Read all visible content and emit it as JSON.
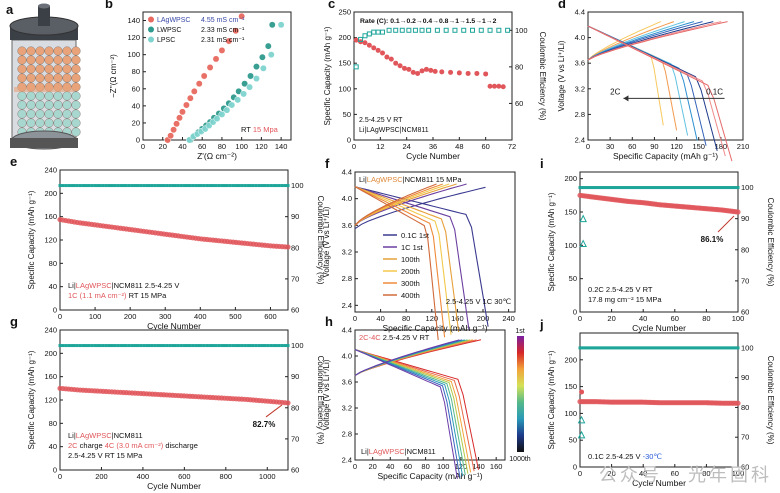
{
  "watermark": "公众号 · 光年固科",
  "chart_data": [
    {
      "id": "a",
      "type": "illustration",
      "panel_label": "a",
      "colors": {
        "cap": "#3b3f46",
        "particle_orange": "#e8a37a",
        "particle_teal": "#a7d7cf"
      }
    },
    {
      "id": "b",
      "type": "scatter",
      "panel_label": "b",
      "xlabel": "Z'(Ω cm⁻²)",
      "ylabel": "−Z''(Ω cm⁻²)",
      "xlim": [
        0,
        150
      ],
      "ylim": [
        0,
        150
      ],
      "xticks": [
        "0",
        "20",
        "40",
        "60",
        "80",
        "100",
        "120",
        "140"
      ],
      "yticks": [
        "0",
        "20",
        "40",
        "60",
        "80",
        "100",
        "120",
        "140"
      ],
      "legend": [
        {
          "name": "LAgWPSC",
          "value": "4.55 mS cm⁻¹",
          "color": "#e8695f",
          "text_color": "#3a49a8"
        },
        {
          "name": "LWPSC",
          "value": "2.33 mS cm⁻¹",
          "color": "#2f9a8e",
          "text_color": "#111111"
        },
        {
          "name": "LPSC",
          "value": "2.31 mS cm⁻¹",
          "color": "#7fd4cf",
          "text_color": "#111111"
        }
      ],
      "annotation": [
        {
          "text": "RT",
          "color": "#111111"
        },
        {
          "text": " 15 Mpa",
          "color": "#e0565a"
        }
      ],
      "series": [
        {
          "name": "LAgWPSC",
          "color": "#e8695f",
          "x": [
            25,
            28,
            31,
            34,
            37,
            40,
            44,
            48,
            52,
            57,
            62,
            68,
            74,
            80,
            87,
            94,
            100
          ],
          "y": [
            0,
            5,
            12,
            19,
            26,
            33,
            41,
            49,
            57,
            66,
            75,
            85,
            95,
            105,
            116,
            128,
            145
          ]
        },
        {
          "name": "LWPSC",
          "color": "#2f9a8e",
          "x": [
            48,
            52,
            56,
            60,
            64,
            68,
            72,
            77,
            82,
            87,
            92,
            97,
            103,
            109,
            115,
            121,
            127,
            131
          ],
          "y": [
            0,
            5,
            9,
            13,
            17,
            21,
            26,
            31,
            37,
            43,
            50,
            57,
            66,
            75,
            86,
            97,
            110,
            135
          ]
        },
        {
          "name": "LPSC",
          "color": "#7fd4cf",
          "x": [
            47,
            51,
            55,
            59,
            63,
            67,
            71,
            75,
            80,
            85,
            90,
            96,
            102,
            108,
            115,
            122,
            130,
            140
          ],
          "y": [
            0,
            4,
            7,
            10,
            13,
            17,
            21,
            25,
            30,
            35,
            41,
            47,
            54,
            62,
            72,
            84,
            100,
            135
          ]
        }
      ]
    },
    {
      "id": "c",
      "type": "scatter",
      "panel_label": "c",
      "title": "Rate (C): 0.1→0.2→0.4→0.8→1→1.5→1→2",
      "xlabel": "Cycle Number",
      "ylabel": "Specific Capacity (mAh g⁻¹)",
      "y2label": "Coulombic Efficiency (%)",
      "xlim": [
        0,
        72
      ],
      "ylim": [
        0,
        250
      ],
      "y2lim": [
        40,
        110
      ],
      "xticks": [
        "0",
        "12",
        "24",
        "36",
        "48",
        "60",
        "72"
      ],
      "yticks": [
        "0",
        "50",
        "100",
        "150",
        "200",
        "250"
      ],
      "y2ticks": [
        "60",
        "80",
        "100"
      ],
      "annotation": [
        "2.5-4.25 V RT",
        "Li|LAgWPSC|NCM811"
      ],
      "series": [
        {
          "name": "capacity",
          "color": "#e0565a",
          "x": [
            1,
            3,
            5,
            7,
            9,
            11,
            13,
            15,
            17,
            19,
            21,
            23,
            25,
            27,
            29,
            31,
            33,
            35,
            37,
            40,
            44,
            48,
            52,
            56,
            60,
            62,
            64,
            66,
            68
          ],
          "y": [
            195,
            192,
            190,
            185,
            180,
            175,
            170,
            162,
            158,
            150,
            145,
            140,
            138,
            132,
            130,
            135,
            138,
            136,
            134,
            133,
            132,
            131,
            130,
            130,
            129,
            105,
            105,
            105,
            104
          ]
        },
        {
          "name": "CE",
          "color": "#1ea59a",
          "x": [
            1,
            3,
            5,
            7,
            9,
            11,
            13,
            16,
            19,
            22,
            25,
            28,
            31,
            34,
            38,
            42,
            46,
            50,
            54,
            58,
            62,
            66,
            70
          ],
          "y": [
            80,
            95,
            97,
            98,
            99,
            99,
            99,
            100,
            100,
            100,
            100,
            100,
            100,
            100,
            100,
            100,
            100,
            100,
            100,
            100,
            100,
            100,
            100
          ]
        }
      ]
    },
    {
      "id": "d",
      "type": "line",
      "panel_label": "d",
      "xlabel": "Specific Capacity (mAh g⁻¹)",
      "ylabel": "Voltage (V vs Li⁺/Li)",
      "xlim": [
        0,
        210
      ],
      "ylim": [
        2.4,
        4.4
      ],
      "xticks": [
        "0",
        "30",
        "60",
        "90",
        "120",
        "150",
        "180",
        "210"
      ],
      "yticks": [
        "2.4",
        "2.8",
        "3.2",
        "3.6",
        "4.0",
        "4.4"
      ],
      "arrow": {
        "from": "0.1C",
        "to": "2C"
      },
      "discharge_caps": [
        102,
        120,
        135,
        148,
        160,
        175,
        186,
        195
      ],
      "colors": [
        "#f7c95e",
        "#f39b4f",
        "#60c2e0",
        "#2c8fd0",
        "#3462b8",
        "#1e3a8a",
        "#f08a8a",
        "#e76a6a"
      ]
    },
    {
      "id": "e",
      "type": "scatter",
      "panel_label": "e",
      "xlabel": "Cycle Number",
      "ylabel": "Specific Capacity (mAh g⁻¹)",
      "y2label": "Coulombic Efficiency (%)",
      "xlim": [
        0,
        650
      ],
      "ylim": [
        0,
        240
      ],
      "y2lim": [
        60,
        105
      ],
      "xticks": [
        "0",
        "100",
        "200",
        "300",
        "400",
        "500",
        "600"
      ],
      "yticks": [
        "0",
        "40",
        "80",
        "120",
        "160",
        "200",
        "240"
      ],
      "y2ticks": [
        "60",
        "70",
        "80",
        "90",
        "100"
      ],
      "annotation": [
        [
          {
            "text": "Li|",
            "color": "#111111"
          },
          {
            "text": "LAgWPSC",
            "color": "#e0565a"
          },
          {
            "text": "|NCM811 2.5-4.25 V",
            "color": "#111111"
          }
        ],
        [
          {
            "text": "1C (1.1 mA cm⁻²)",
            "color": "#e0565a"
          },
          {
            "text": " RT 15 MPa",
            "color": "#111111"
          }
        ]
      ],
      "series": [
        {
          "name": "capacity",
          "color": "#e0565a",
          "x": [
            0,
            50,
            100,
            150,
            200,
            250,
            300,
            350,
            400,
            450,
            500,
            550,
            600,
            650
          ],
          "y": [
            155,
            150,
            146,
            142,
            138,
            134,
            130,
            126,
            122,
            119,
            116,
            113,
            110,
            108
          ]
        },
        {
          "name": "CE",
          "color": "#1ea59a",
          "x": [
            0,
            50,
            100,
            150,
            200,
            250,
            300,
            350,
            400,
            450,
            500,
            550,
            600,
            650
          ],
          "y": [
            100,
            100,
            100,
            100,
            100,
            100,
            100,
            100,
            100,
            100,
            100,
            100,
            100,
            100
          ]
        }
      ]
    },
    {
      "id": "f",
      "type": "line",
      "panel_label": "f",
      "xlabel": "Specific Capacity (mAh g⁻¹)",
      "ylabel": "Voltage (V vs Li⁺/Li)",
      "xlim": [
        0,
        250
      ],
      "ylim": [
        2.3,
        4.4
      ],
      "xticks": [
        "0",
        "40",
        "80",
        "120",
        "160",
        "200",
        "240"
      ],
      "yticks": [
        "2.4",
        "2.8",
        "3.2",
        "3.6",
        "4.0",
        "4.4"
      ],
      "top_label": [
        {
          "text": "Li|",
          "color": "#111111"
        },
        {
          "text": "LAgWPSC",
          "color": "#e08a3a"
        },
        {
          "text": "|NCM811 15 MPa",
          "color": "#111111"
        }
      ],
      "annotation": "2.5-4.25 V 1C 30℃",
      "series": [
        {
          "name": "0.1C 1st",
          "color": "#3a3a90",
          "cap": 208
        },
        {
          "name": "1C 1st",
          "color": "#6b3fa0",
          "cap": 178
        },
        {
          "name": "100th",
          "color": "#e6a03a",
          "cap": 162
        },
        {
          "name": "200th",
          "color": "#f2c94c",
          "cap": 150
        },
        {
          "name": "300th",
          "color": "#f08a3a",
          "cap": 140
        },
        {
          "name": "400th",
          "color": "#d06a3a",
          "cap": 130
        }
      ]
    },
    {
      "id": "g",
      "type": "scatter",
      "panel_label": "g",
      "xlabel": "Cycle Number",
      "ylabel": "Specific Capacity (mAh g⁻¹)",
      "y2label": "Coulombic Efficiency (%)",
      "xlim": [
        0,
        1100
      ],
      "ylim": [
        0,
        240
      ],
      "y2lim": [
        60,
        105
      ],
      "xticks": [
        "0",
        "200",
        "400",
        "600",
        "800",
        "1000"
      ],
      "yticks": [
        "0",
        "40",
        "80",
        "120",
        "160",
        "200",
        "240"
      ],
      "y2ticks": [
        "60",
        "70",
        "80",
        "90",
        "100"
      ],
      "retention": "82.7%",
      "annotation": [
        [
          {
            "text": "Li|",
            "color": "#111111"
          },
          {
            "text": "LAgWPSC",
            "color": "#e0565a"
          },
          {
            "text": "|NCM811",
            "color": "#111111"
          }
        ],
        [
          {
            "text": "2C",
            "color": "#e0565a"
          },
          {
            "text": " charge ",
            "color": "#111111"
          },
          {
            "text": "4C (3.0 mA cm⁻²)",
            "color": "#e0565a"
          },
          {
            "text": "  discharge",
            "color": "#111111"
          }
        ],
        [
          {
            "text": "2.5-4.25 V RT 15 MPa",
            "color": "#111111"
          }
        ]
      ],
      "series": [
        {
          "name": "capacity",
          "color": "#e0565a",
          "x": [
            0,
            100,
            200,
            300,
            400,
            500,
            600,
            700,
            800,
            900,
            1000,
            1100
          ],
          "y": [
            140,
            137,
            135,
            133,
            131,
            129,
            127,
            125,
            123,
            121,
            118,
            115
          ]
        },
        {
          "name": "CE",
          "color": "#1ea59a",
          "x": [
            0,
            100,
            200,
            300,
            400,
            500,
            600,
            700,
            800,
            900,
            1000,
            1100
          ],
          "y": [
            100,
            100,
            100,
            100,
            100,
            100,
            100,
            100,
            100,
            100,
            100,
            100
          ]
        }
      ]
    },
    {
      "id": "h",
      "type": "line",
      "panel_label": "h",
      "xlabel": "Specific Capacity (mAh g⁻¹)",
      "ylabel": "Voltage (V vs Li⁺/Li)",
      "xlim": [
        0,
        170
      ],
      "ylim": [
        2.4,
        4.4
      ],
      "xticks": [
        "0",
        "20",
        "40",
        "60",
        "80",
        "100",
        "120",
        "140",
        "160"
      ],
      "yticks": [
        "2.4",
        "2.8",
        "3.2",
        "3.6",
        "4.0",
        "4.4"
      ],
      "top_label": [
        {
          "text": "2C-4C",
          "color": "#e0565a"
        },
        {
          "text": " 2.5-4.25 V RT",
          "color": "#111111"
        }
      ],
      "bottom_label": [
        {
          "text": "Li|",
          "color": "#111111"
        },
        {
          "text": "LAgWPSC",
          "color": "#e0565a"
        },
        {
          "text": "|NCM811",
          "color": "#111111"
        }
      ],
      "colorbar": {
        "top": "1st",
        "bottom": "1000th"
      },
      "caps": [
        140,
        135,
        131,
        128,
        125,
        122,
        119,
        116
      ]
    },
    {
      "id": "i",
      "type": "scatter",
      "panel_label": "i",
      "xlabel": "Cycle Number",
      "ylabel": "Specific Capacity (mAh g⁻¹)",
      "y2label": "Coulombic Efficiency (%)",
      "xlim": [
        0,
        100
      ],
      "ylim": [
        0,
        210
      ],
      "y2lim": [
        60,
        105
      ],
      "xticks": [
        "0",
        "20",
        "40",
        "60",
        "80",
        "100"
      ],
      "yticks": [
        "0",
        "50",
        "100",
        "150",
        "200"
      ],
      "y2ticks": [
        "60",
        "70",
        "80",
        "90",
        "100"
      ],
      "retention": "86.1%",
      "annotation": [
        "0.2C 2.5-4.25 V RT",
        "17.8 mg cm⁻²   15 MPa"
      ],
      "series": [
        {
          "name": "capacity",
          "color": "#e0565a",
          "x": [
            0,
            10,
            20,
            30,
            40,
            50,
            60,
            70,
            80,
            90,
            100
          ],
          "y": [
            175,
            172,
            169,
            166,
            164,
            161,
            159,
            157,
            155,
            153,
            150
          ]
        },
        {
          "name": "CE",
          "color": "#1ea59a",
          "x": [
            0,
            10,
            20,
            30,
            40,
            50,
            60,
            70,
            80,
            90,
            100
          ],
          "y": [
            100,
            100,
            100,
            100,
            100,
            100,
            100,
            100,
            100,
            100,
            100
          ]
        }
      ]
    },
    {
      "id": "j",
      "type": "scatter",
      "panel_label": "j",
      "xlabel": "Cycle Number",
      "ylabel": "Specific Capacity (mAh g⁻¹)",
      "y2label": "Coulombic Efficiency (%)",
      "xlim": [
        0,
        100
      ],
      "ylim": [
        0,
        250
      ],
      "y2lim": [
        60,
        105
      ],
      "xticks": [
        "0",
        "20",
        "40",
        "60",
        "80",
        "100"
      ],
      "yticks": [
        "0",
        "50",
        "100",
        "150",
        "200"
      ],
      "y2ticks": [
        "60",
        "70",
        "80",
        "90",
        "100"
      ],
      "annotation": [
        {
          "text": "0.1C 2.5-4.25 V ",
          "color": "#111111"
        },
        {
          "text": "-30℃",
          "color": "#2a5bd7"
        }
      ],
      "series": [
        {
          "name": "capacity",
          "color": "#e0565a",
          "x": [
            0,
            10,
            20,
            30,
            40,
            50,
            60,
            70,
            80,
            90,
            100
          ],
          "y": [
            122,
            122,
            121,
            121,
            121,
            120,
            120,
            120,
            120,
            119,
            119
          ]
        },
        {
          "name": "CE",
          "color": "#1ea59a",
          "x": [
            0,
            10,
            20,
            30,
            40,
            50,
            60,
            70,
            80,
            90,
            100
          ],
          "y": [
            100,
            100,
            100,
            100,
            100,
            100,
            100,
            100,
            100,
            100,
            100
          ]
        }
      ]
    }
  ]
}
